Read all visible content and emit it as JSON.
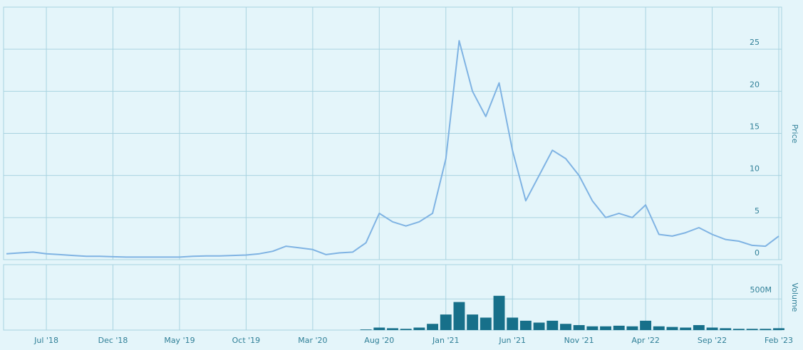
{
  "chart_data": [
    {
      "type": "line",
      "ylabel": "Price",
      "color": "#7fb3e3",
      "x": [
        "2018-04",
        "2018-05",
        "2018-06",
        "2018-07",
        "2018-08",
        "2018-09",
        "2018-10",
        "2018-11",
        "2018-12",
        "2019-01",
        "2019-02",
        "2019-03",
        "2019-04",
        "2019-05",
        "2019-06",
        "2019-07",
        "2019-08",
        "2019-09",
        "2019-10",
        "2019-11",
        "2019-12",
        "2020-01",
        "2020-02",
        "2020-03",
        "2020-04",
        "2020-05",
        "2020-06",
        "2020-07",
        "2020-08",
        "2020-09",
        "2020-10",
        "2020-11",
        "2020-12",
        "2021-01",
        "2021-02",
        "2021-03",
        "2021-04",
        "2021-05",
        "2021-06",
        "2021-07",
        "2021-08",
        "2021-09",
        "2021-10",
        "2021-11",
        "2021-12",
        "2022-01",
        "2022-02",
        "2022-03",
        "2022-04",
        "2022-05",
        "2022-06",
        "2022-07",
        "2022-08",
        "2022-09",
        "2022-10",
        "2022-11",
        "2022-12",
        "2023-01",
        "2023-02"
      ],
      "values": [
        0.7,
        0.8,
        0.9,
        0.7,
        0.6,
        0.5,
        0.4,
        0.4,
        0.35,
        0.3,
        0.3,
        0.3,
        0.3,
        0.3,
        0.4,
        0.45,
        0.45,
        0.5,
        0.55,
        0.7,
        1.0,
        1.6,
        1.4,
        1.2,
        0.6,
        0.8,
        0.9,
        2.0,
        5.5,
        4.5,
        4.0,
        4.5,
        5.5,
        12,
        26,
        20,
        17,
        21,
        13,
        7,
        10,
        13,
        12,
        10,
        7,
        5,
        5.5,
        5,
        6.5,
        3,
        2.8,
        3.2,
        3.8,
        3,
        2.4,
        2.2,
        1.7,
        1.6,
        2.8
      ],
      "xlim": [
        "2018-04",
        "2023-02"
      ],
      "ylim": [
        0,
        30
      ],
      "yticks": [
        0,
        5,
        10,
        15,
        20,
        25
      ],
      "grid": true
    },
    {
      "type": "bar",
      "ylabel": "Volume",
      "color": "#17708a",
      "x": [
        "2020-07",
        "2020-08",
        "2020-09",
        "2020-10",
        "2020-11",
        "2020-12",
        "2021-01",
        "2021-02",
        "2021-03",
        "2021-04",
        "2021-05",
        "2021-06",
        "2021-07",
        "2021-08",
        "2021-09",
        "2021-10",
        "2021-11",
        "2021-12",
        "2022-01",
        "2022-02",
        "2022-03",
        "2022-04",
        "2022-05",
        "2022-06",
        "2022-07",
        "2022-08",
        "2022-09",
        "2022-10",
        "2022-11",
        "2022-12",
        "2023-01",
        "2023-02"
      ],
      "values": [
        10000000,
        40000000,
        30000000,
        20000000,
        40000000,
        100000000,
        250000000,
        450000000,
        250000000,
        200000000,
        550000000,
        200000000,
        150000000,
        120000000,
        150000000,
        100000000,
        80000000,
        60000000,
        60000000,
        70000000,
        60000000,
        150000000,
        60000000,
        50000000,
        40000000,
        80000000,
        40000000,
        30000000,
        20000000,
        20000000,
        20000000,
        30000000
      ],
      "xlim": [
        "2018-04",
        "2023-02"
      ],
      "xticks": [
        {
          "value": "2018-07",
          "label": "Jul '18"
        },
        {
          "value": "2018-12",
          "label": "Dec '18"
        },
        {
          "value": "2019-05",
          "label": "May '19"
        },
        {
          "value": "2019-10",
          "label": "Oct '19"
        },
        {
          "value": "2020-03",
          "label": "Mar '20"
        },
        {
          "value": "2020-08",
          "label": "Aug '20"
        },
        {
          "value": "2021-01",
          "label": "Jan '21"
        },
        {
          "value": "2021-06",
          "label": "Jun '21"
        },
        {
          "value": "2021-11",
          "label": "Nov '21"
        },
        {
          "value": "2022-04",
          "label": "Apr '22"
        },
        {
          "value": "2022-09",
          "label": "Sep '22"
        },
        {
          "value": "2023-02",
          "label": "Feb '23"
        }
      ],
      "ylim": [
        0,
        1050000000
      ],
      "yticks": [
        {
          "value": 500000000,
          "label": "500M"
        }
      ],
      "grid": true
    }
  ]
}
